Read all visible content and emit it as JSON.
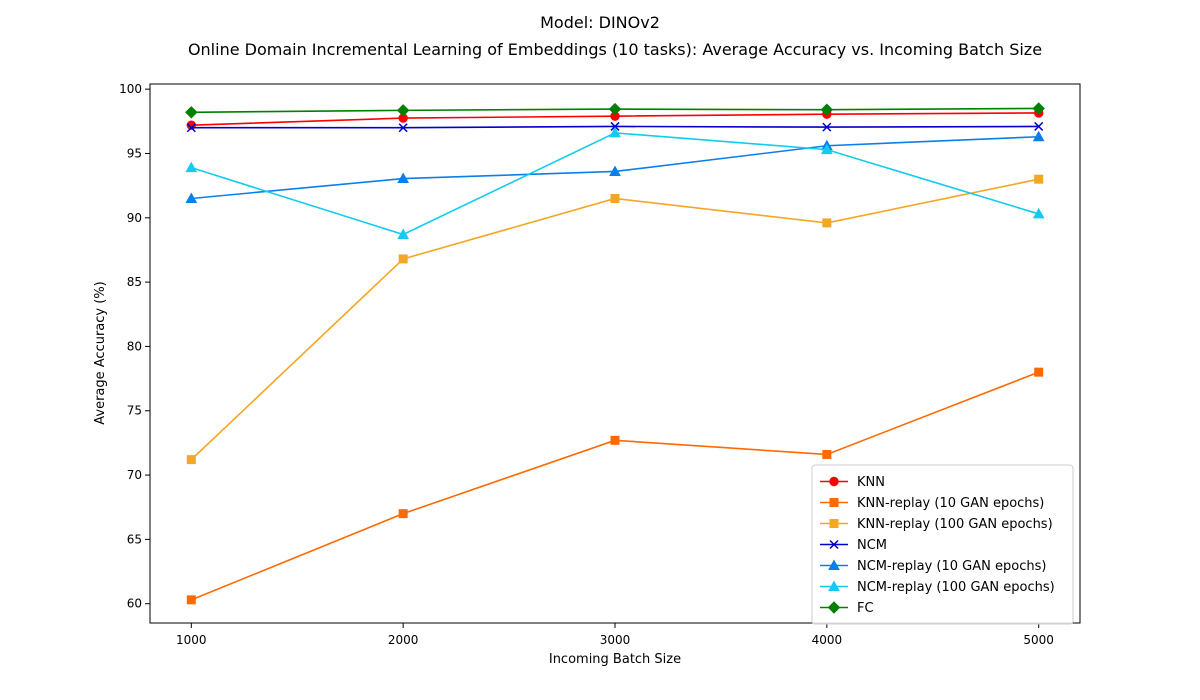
{
  "chart_data": {
    "type": "line",
    "title": "Model: DINOv2",
    "subtitle": "Online Domain Incremental Learning of Embeddings (10 tasks): Average Accuracy vs. Incoming Batch Size",
    "xlabel": "Incoming Batch Size",
    "ylabel": "Average Accuracy (%)",
    "x": [
      1000,
      2000,
      3000,
      4000,
      5000
    ],
    "x_ticks": [
      "1000",
      "2000",
      "3000",
      "4000",
      "5000"
    ],
    "y_ticks": [
      "60",
      "65",
      "70",
      "75",
      "80",
      "85",
      "90",
      "95",
      "100"
    ],
    "xlim": [
      805,
      5195
    ],
    "ylim": [
      58.5,
      100.4
    ],
    "grid": false,
    "legend_position": "lower-right",
    "series": [
      {
        "name": "KNN",
        "color": "#ff0000",
        "marker": "circle",
        "values": [
          97.2,
          97.75,
          97.9,
          98.05,
          98.15
        ]
      },
      {
        "name": "KNN-replay (10 GAN epochs)",
        "color": "#ff6a00",
        "marker": "square",
        "values": [
          60.3,
          67.0,
          72.7,
          71.6,
          78.0
        ]
      },
      {
        "name": "KNN-replay (100 GAN epochs)",
        "color": "#f5a623",
        "marker": "square",
        "values": [
          71.2,
          86.8,
          91.5,
          89.6,
          93.0
        ]
      },
      {
        "name": "NCM",
        "color": "#0000cc",
        "marker": "x",
        "values": [
          97.0,
          97.0,
          97.1,
          97.05,
          97.1
        ]
      },
      {
        "name": "NCM-replay (10 GAN epochs)",
        "color": "#0a7fea",
        "marker": "triangle",
        "values": [
          91.5,
          93.05,
          93.6,
          95.6,
          96.3
        ]
      },
      {
        "name": "NCM-replay (100 GAN epochs)",
        "color": "#11ccee",
        "marker": "triangle",
        "values": [
          93.9,
          88.7,
          96.6,
          95.3,
          90.3
        ]
      },
      {
        "name": "FC",
        "color": "#008000",
        "marker": "diamond",
        "values": [
          98.2,
          98.35,
          98.45,
          98.4,
          98.5
        ]
      }
    ]
  }
}
